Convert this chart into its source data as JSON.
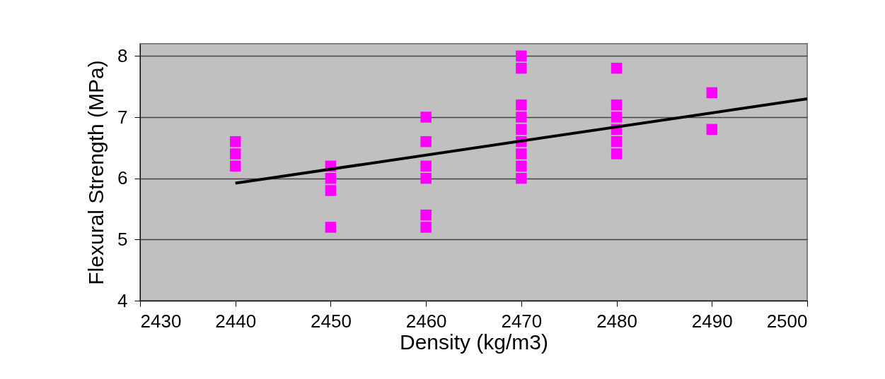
{
  "chart_data": {
    "type": "scatter",
    "xlabel": "Density (kg/m3)",
    "ylabel": "Flexural Strength (MPa)",
    "xlim": [
      2430,
      2500
    ],
    "xticks": [
      2430,
      2440,
      2450,
      2460,
      2470,
      2480,
      2490,
      2500
    ],
    "ylim": [
      4,
      8.2
    ],
    "yticks": [
      4,
      5,
      6,
      7,
      8
    ],
    "grid": "y",
    "series": [
      {
        "color": "#ff00ff",
        "marker": "square",
        "x": [
          2440,
          2440,
          2440,
          2450,
          2450,
          2450,
          2450,
          2460,
          2460,
          2460,
          2460,
          2460,
          2460,
          2470,
          2470,
          2470,
          2470,
          2470,
          2470,
          2470,
          2470,
          2470,
          2480,
          2480,
          2480,
          2480,
          2480,
          2480,
          2490,
          2490
        ],
        "values": [
          6.6,
          6.4,
          6.2,
          6.2,
          6.0,
          5.8,
          5.2,
          7.0,
          6.6,
          6.2,
          6.0,
          5.4,
          5.2,
          8.0,
          7.8,
          7.2,
          7.0,
          6.8,
          6.6,
          6.4,
          6.2,
          6.0,
          7.8,
          7.2,
          7.0,
          6.8,
          6.6,
          6.4,
          7.4,
          6.8
        ]
      },
      {
        "type": "line",
        "color": "#000000",
        "x": [
          2440,
          2500
        ],
        "values": [
          5.92,
          7.3
        ]
      }
    ]
  }
}
